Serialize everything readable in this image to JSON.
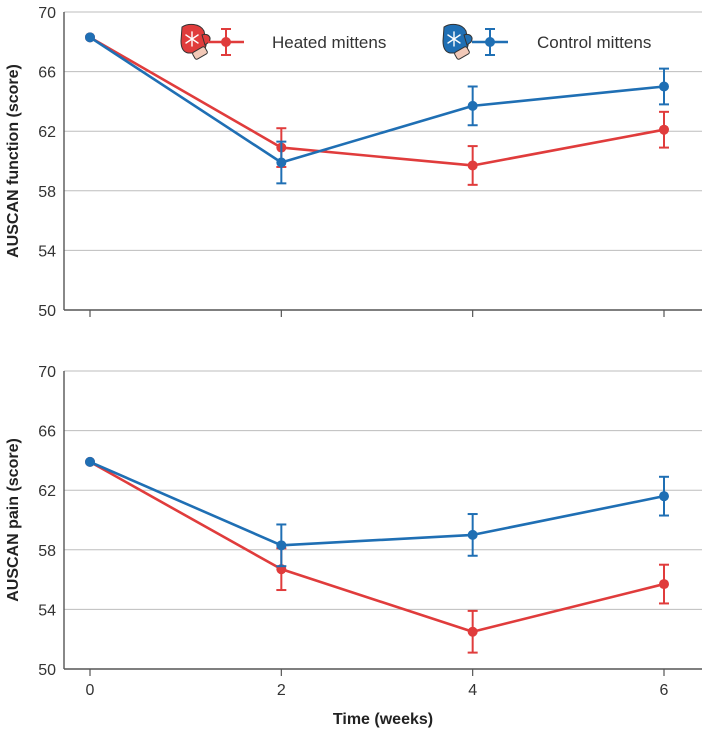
{
  "chart_data": [
    {
      "type": "line",
      "ylabel": "AUSCAN function (score)",
      "x": [
        0,
        2,
        4,
        6
      ],
      "xlim": [
        -0.4,
        6.4
      ],
      "ylim": [
        50,
        70
      ],
      "yticks": [
        50,
        54,
        58,
        62,
        66,
        70
      ],
      "grid": true,
      "legend_position": "top",
      "series": [
        {
          "name": "Heated mittens",
          "color": "#E03C3C",
          "values": [
            68.3,
            60.9,
            59.7,
            62.1
          ],
          "error": [
            0,
            1.3,
            1.3,
            1.2
          ],
          "icon": "red-mitten-icon"
        },
        {
          "name": "Control mittens",
          "color": "#1F6FB4",
          "values": [
            68.3,
            59.9,
            63.7,
            65.0
          ],
          "error": [
            0,
            1.4,
            1.3,
            1.2
          ],
          "icon": "blue-mitten-icon"
        }
      ]
    },
    {
      "type": "line",
      "ylabel": "AUSCAN pain (score)",
      "xlabel": "Time (weeks)",
      "x": [
        0,
        2,
        4,
        6
      ],
      "xticks": [
        "0",
        "2",
        "4",
        "6"
      ],
      "xlim": [
        -0.4,
        6.4
      ],
      "ylim": [
        50,
        70
      ],
      "yticks": [
        50,
        54,
        58,
        62,
        66,
        70
      ],
      "grid": true,
      "series": [
        {
          "name": "Heated mittens",
          "color": "#E03C3C",
          "values": [
            63.9,
            56.7,
            52.5,
            55.7
          ],
          "error": [
            0,
            1.4,
            1.4,
            1.3
          ]
        },
        {
          "name": "Control mittens",
          "color": "#1F6FB4",
          "values": [
            63.9,
            58.3,
            59.0,
            61.6
          ],
          "error": [
            0,
            1.4,
            1.4,
            1.3
          ]
        }
      ]
    }
  ]
}
